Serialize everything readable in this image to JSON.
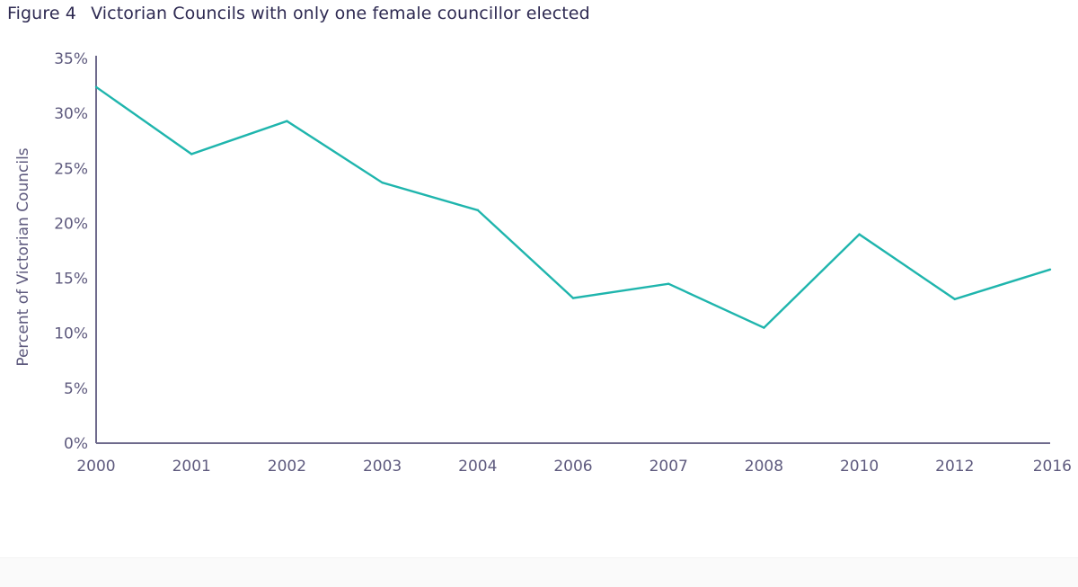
{
  "figure": {
    "number_label": "Figure 4",
    "caption": "Victorian Councils with only one female councillor elected"
  },
  "colors": {
    "line": "#1fb5ad",
    "axis": "#6e6a8c",
    "text": "#5e5a7e"
  },
  "chart_data": {
    "type": "line",
    "title": "Victorian Councils with only one female councillor elected",
    "xlabel": "",
    "ylabel": "Percent of Victorian Councils",
    "categories": [
      "2000",
      "2001",
      "2002",
      "2003",
      "2004",
      "2006",
      "2007",
      "2008",
      "2010",
      "2012",
      "2016"
    ],
    "series": [
      {
        "name": "Councils with only one female councillor",
        "values": [
          32.4,
          26.3,
          29.3,
          23.7,
          21.2,
          13.2,
          14.5,
          10.5,
          19.0,
          13.1,
          15.8
        ]
      }
    ],
    "ylim": [
      0,
      35
    ],
    "yticks": [
      0,
      5,
      10,
      15,
      20,
      25,
      30,
      35
    ],
    "ytick_labels": [
      "0%",
      "5%",
      "10%",
      "15%",
      "20%",
      "25%",
      "30%",
      "35%"
    ],
    "grid": false,
    "legend": "none"
  }
}
